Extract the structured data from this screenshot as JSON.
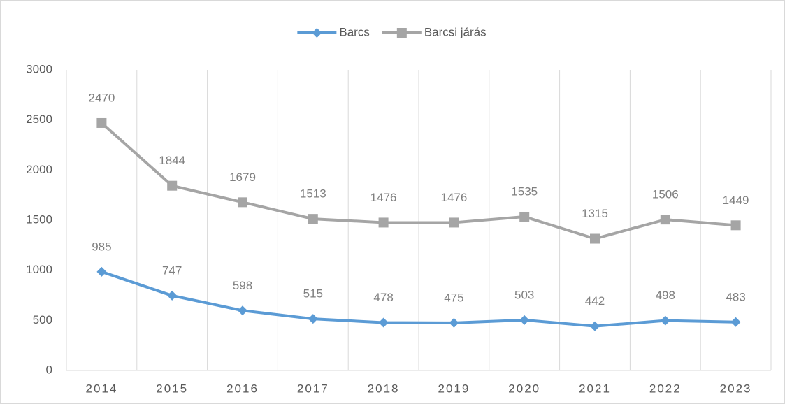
{
  "chart_data": {
    "type": "line",
    "categories": [
      "2014",
      "2015",
      "2016",
      "2017",
      "2018",
      "2019",
      "2020",
      "2021",
      "2022",
      "2023"
    ],
    "series": [
      {
        "name": "Barcs",
        "color": "#5b9bd5",
        "marker": "diamond",
        "values": [
          985,
          747,
          598,
          515,
          478,
          475,
          503,
          442,
          498,
          483
        ]
      },
      {
        "name": "Barcsi járás",
        "color": "#a5a5a5",
        "marker": "square",
        "values": [
          2470,
          1844,
          1679,
          1513,
          1476,
          1476,
          1535,
          1315,
          1506,
          1449
        ]
      }
    ],
    "ylim": [
      0,
      3000
    ],
    "yticks": [
      0,
      500,
      1000,
      1500,
      2000,
      2500,
      3000
    ],
    "xgrid": true,
    "legend": "top",
    "data_labels": true
  }
}
